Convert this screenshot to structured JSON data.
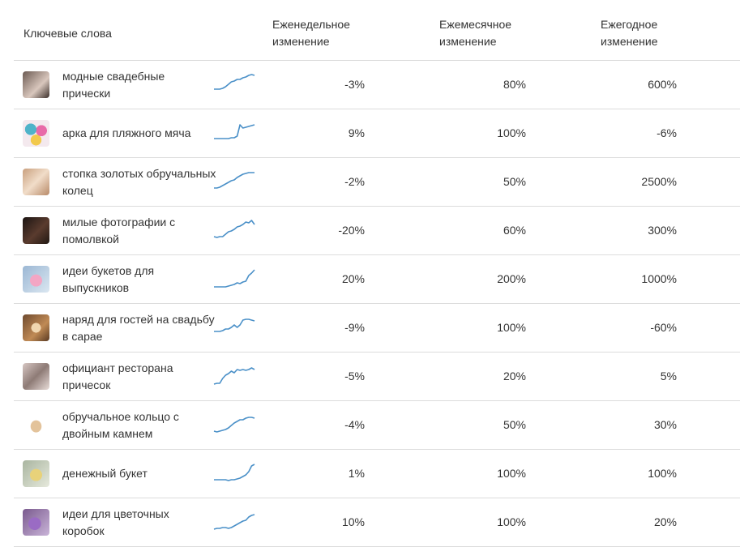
{
  "header": {
    "keywords": "Ключевые слова",
    "weekly_line1": "Еженедельное",
    "weekly_line2": "изменение",
    "monthly_line1": "Ежемесячное",
    "monthly_line2": "изменение",
    "yearly_line1": "Ежегодное",
    "yearly_line2": "изменение"
  },
  "colors": {
    "sparkline": "#4a90c8",
    "divider": "#dcdcdc"
  },
  "rows": [
    {
      "line1": "модные свадебные",
      "line2": "прически",
      "weekly": "-3%",
      "monthly": "80%",
      "yearly": "600%",
      "thumb_icon": "hairstyle-photo-icon",
      "thumb_bg": "linear-gradient(135deg,#6b5a52,#d9c7bd 60%,#3a2e29)",
      "trend": [
        20,
        20,
        20,
        19,
        17,
        14,
        11,
        10,
        8,
        8,
        6,
        5,
        3,
        2,
        3
      ]
    },
    {
      "line1": "арка для пляжного мяча",
      "line2": "",
      "weekly": "9%",
      "monthly": "100%",
      "yearly": "-6%",
      "thumb_icon": "balloon-arch-photo-icon",
      "thumb_bg": "radial-gradient(circle at 30% 35%,#4fb3c9 0 22%,transparent 23%),radial-gradient(circle at 70% 40%,#e86aa8 0 22%,transparent 23%),radial-gradient(circle at 50% 75%,#f2c94c 0 22%,transparent 23%),#f4e9ee",
      "trend": [
        21,
        21,
        21,
        21,
        21,
        21,
        20,
        20,
        18,
        4,
        8,
        7,
        6,
        5,
        4
      ]
    },
    {
      "line1": "стопка золотых обручальных",
      "line2": "колец",
      "weekly": "-2%",
      "monthly": "50%",
      "yearly": "2500%",
      "thumb_icon": "wedding-rings-photo-icon",
      "thumb_bg": "linear-gradient(135deg,#c9a07e,#f1ddc9 50%,#b88a68)",
      "trend": [
        22,
        22,
        21,
        19,
        17,
        15,
        13,
        12,
        9,
        7,
        5,
        4,
        3,
        3,
        3
      ]
    },
    {
      "line1": "милые фотографии с",
      "line2": "помолвкой",
      "weekly": "-20%",
      "monthly": "60%",
      "yearly": "300%",
      "thumb_icon": "engagement-photo-icon",
      "thumb_bg": "linear-gradient(135deg,#1b1412,#5a3b2e 55%,#211813)",
      "trend": [
        22,
        23,
        22,
        22,
        19,
        16,
        15,
        13,
        10,
        9,
        7,
        4,
        5,
        2,
        7
      ]
    },
    {
      "line1": "идеи букетов для",
      "line2": "выпускников",
      "weekly": "20%",
      "monthly": "200%",
      "yearly": "1000%",
      "thumb_icon": "graduation-bouquet-photo-icon",
      "thumb_bg": "radial-gradient(circle at 50% 55%,#f3a6c4 0 30%,transparent 31%),linear-gradient(135deg,#9bb7d4,#dbe7f1)",
      "trend": [
        24,
        24,
        24,
        24,
        24,
        23,
        22,
        21,
        19,
        20,
        18,
        17,
        10,
        7,
        3
      ]
    },
    {
      "line1": "наряд для гостей на свадьбу",
      "line2": "в сарае",
      "weekly": "-9%",
      "monthly": "100%",
      "yearly": "-60%",
      "thumb_icon": "barn-wedding-outfit-photo-icon",
      "thumb_bg": "radial-gradient(circle at 50% 50%,#f0d6b0 0 25%,transparent 26%),linear-gradient(135deg,#6e4a2e,#c08a55 60%,#5a3a22)",
      "trend": [
        19,
        19,
        19,
        18,
        16,
        16,
        14,
        11,
        14,
        11,
        5,
        4,
        4,
        5,
        6
      ]
    },
    {
      "line1": "официант ресторана",
      "line2": "причесок",
      "weekly": "-5%",
      "monthly": "20%",
      "yearly": "5%",
      "thumb_icon": "hair-salon-photo-icon",
      "thumb_bg": "linear-gradient(135deg,#d7c7c3,#8e7b76 50%,#e8dcd8)",
      "trend": [
        24,
        23,
        23,
        17,
        13,
        11,
        8,
        10,
        6,
        7,
        6,
        7,
        6,
        4,
        6
      ]
    },
    {
      "line1": "обручальное кольцо с",
      "line2": "двойным камнем",
      "weekly": "-4%",
      "monthly": "50%",
      "yearly": "30%",
      "thumb_icon": "double-stone-ring-photo-icon",
      "thumb_bg": "radial-gradient(ellipse at 50% 55%,#e3c39b 0 28%,transparent 30%),#ffffff",
      "trend": [
        22,
        23,
        22,
        21,
        20,
        18,
        15,
        12,
        10,
        8,
        8,
        6,
        5,
        5,
        6
      ]
    },
    {
      "line1": "денежный букет",
      "line2": "",
      "weekly": "1%",
      "monthly": "100%",
      "yearly": "100%",
      "thumb_icon": "money-bouquet-photo-icon",
      "thumb_bg": "radial-gradient(circle at 50% 55%,#e8d27a 0 30%,transparent 31%),linear-gradient(135deg,#a9b5a0,#e6e9dc)",
      "trend": [
        22,
        22,
        22,
        22,
        22,
        23,
        22,
        22,
        21,
        20,
        18,
        16,
        12,
        5,
        3
      ]
    },
    {
      "line1": "идеи для цветочных",
      "line2": "коробок",
      "weekly": "10%",
      "monthly": "100%",
      "yearly": "20%",
      "thumb_icon": "flower-box-photo-icon",
      "thumb_bg": "radial-gradient(circle at 45% 55%,#9a6bc4 0 30%,transparent 31%),linear-gradient(135deg,#7a5a8e,#c9b4d8)",
      "trend": [
        23,
        22,
        22,
        21,
        21,
        22,
        21,
        19,
        17,
        15,
        13,
        12,
        8,
        6,
        5
      ]
    }
  ]
}
